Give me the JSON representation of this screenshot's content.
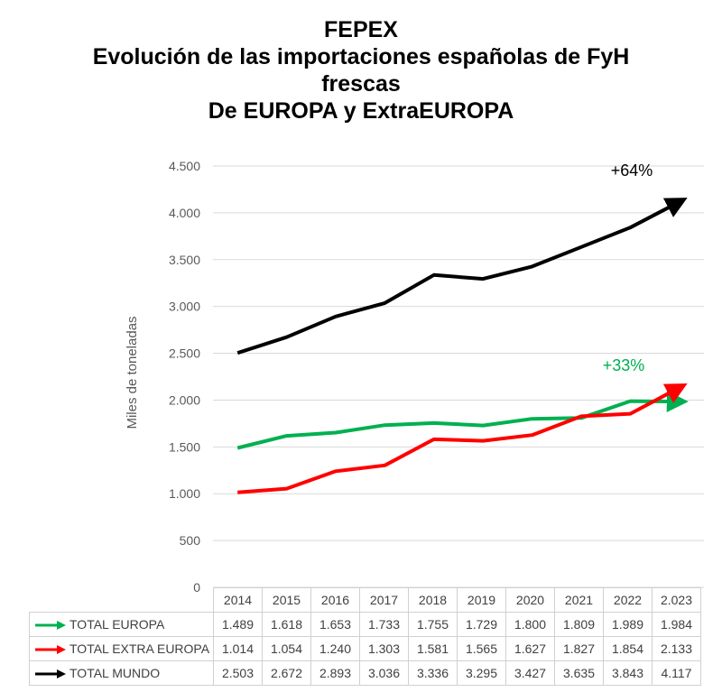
{
  "title_lines": [
    "FEPEX",
    "Evolución de las importaciones españolas de FyH",
    "frescas",
    "De EUROPA y ExtraEUROPA"
  ],
  "chart_data": {
    "type": "line",
    "title": "FEPEX Evolución de las importaciones españolas de FyH frescas De EUROPA y ExtraEUROPA",
    "ylabel": "Miles de toneladas",
    "xlabel": "",
    "categories": [
      "2014",
      "2015",
      "2016",
      "2017",
      "2018",
      "2019",
      "2020",
      "2021",
      "2022",
      "2.023"
    ],
    "ylim": [
      0,
      4500
    ],
    "yticks": [
      0,
      500,
      1000,
      1500,
      2000,
      2500,
      3000,
      3500,
      4000,
      4500
    ],
    "ytick_labels": [
      "0",
      "500",
      "1.000",
      "1.500",
      "2.000",
      "2.500",
      "3.000",
      "3.500",
      "4.000",
      "4.500"
    ],
    "grid": true,
    "series": [
      {
        "name": "TOTAL EUROPA",
        "color": "#00b050",
        "values": [
          1489,
          1618,
          1653,
          1733,
          1755,
          1729,
          1800,
          1809,
          1989,
          1984
        ],
        "labels": [
          "1.489",
          "1.618",
          "1.653",
          "1.733",
          "1.755",
          "1.729",
          "1.800",
          "1.809",
          "1.989",
          "1.984"
        ]
      },
      {
        "name": "TOTAL EXTRA EUROPA",
        "color": "#ff0000",
        "values": [
          1014,
          1054,
          1240,
          1303,
          1581,
          1565,
          1627,
          1827,
          1854,
          2133
        ],
        "labels": [
          "1.014",
          "1.054",
          "1.240",
          "1.303",
          "1.581",
          "1.565",
          "1.627",
          "1.827",
          "1.854",
          "2.133"
        ]
      },
      {
        "name": "TOTAL MUNDO",
        "color": "#000000",
        "values": [
          2503,
          2672,
          2893,
          3036,
          3336,
          3295,
          3427,
          3635,
          3843,
          4117
        ],
        "labels": [
          "2.503",
          "2.672",
          "2.893",
          "3.036",
          "3.336",
          "3.295",
          "3.427",
          "3.635",
          "3.843",
          "4.117"
        ]
      }
    ],
    "annotations": [
      {
        "text": "+64%",
        "color": "#000000",
        "near": "TOTAL MUNDO end"
      },
      {
        "text": "+33%",
        "color": "#00b050",
        "near": "TOTAL EUROPA end"
      }
    ],
    "legend": "data table below chart"
  }
}
